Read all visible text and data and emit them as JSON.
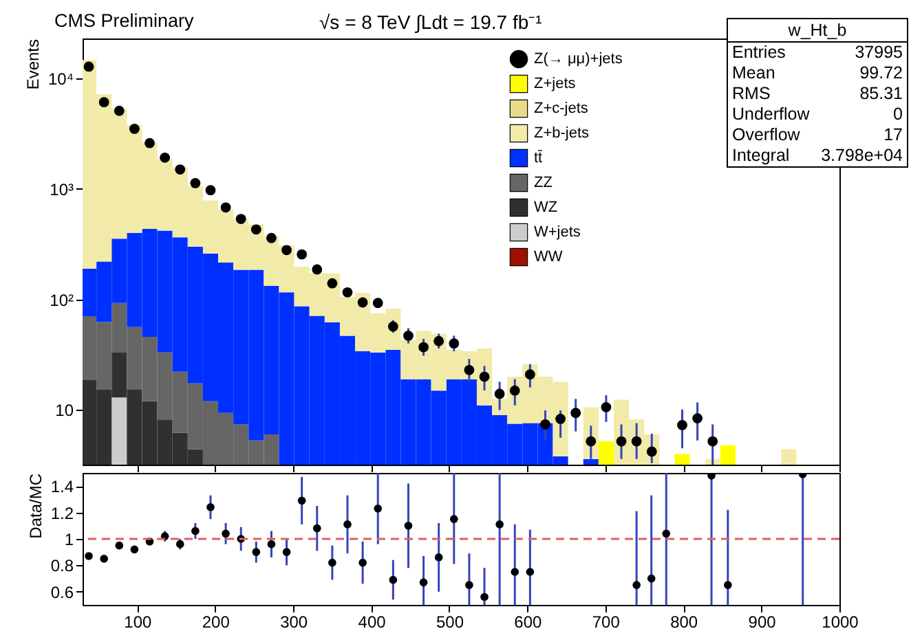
{
  "chart_data": [
    {
      "type": "bar",
      "title": "CMS Preliminary",
      "ylabel": "Events",
      "stacked": true,
      "log": "y",
      "legend": "top right",
      "marker": "circle",
      "tick_labels": "y",
      "annotations": [
        "√s = 8 TeV ∫Ldt = 19.7 fb⁻¹",
        "w_Ht_b",
        "Entries",
        "37995",
        "Mean",
        "99.72",
        "RMS",
        "85.31",
        "Underflow",
        "0",
        "Overflow",
        "17",
        "Integral",
        "3.798e+04"
      ],
      "xlim": [
        30,
        1000
      ],
      "xticks": [
        100,
        200,
        300,
        400,
        500,
        600,
        700,
        800,
        900,
        1000
      ],
      "ylim": [
        3.2,
        23000
      ],
      "yticks": [
        10,
        {
          "value": 100,
          "label": "10²"
        },
        {
          "value": 1000,
          "label": "10³"
        },
        {
          "value": 10000,
          "label": "10⁴"
        }
      ],
      "x": [
        38,
        57.5,
        77,
        96.5,
        116,
        135.5,
        155,
        174.5,
        194,
        213.5,
        233,
        252.5,
        272,
        291.5,
        311,
        330.5,
        350,
        369.5,
        389,
        408.5,
        428,
        447.5,
        467,
        486.5,
        506,
        525.5,
        545,
        564.5,
        584,
        603.5,
        623,
        642.5,
        662,
        681.5,
        701,
        720.5,
        740,
        759.5,
        779,
        798.5,
        818,
        837.5,
        857,
        876.5,
        896,
        915.5,
        935
      ],
      "series": [
        {
          "name": "WW",
          "color": "#a01000",
          "values": [
            null,
            null,
            null,
            null,
            null,
            null,
            null,
            null,
            null,
            null,
            null,
            null,
            null,
            null,
            null,
            null,
            null,
            null,
            null,
            null,
            null,
            null,
            null,
            null,
            null,
            null,
            null,
            null,
            null,
            null,
            null,
            null,
            null,
            null,
            null,
            null,
            null,
            null,
            null,
            null,
            null,
            null,
            null,
            null,
            null,
            null,
            null
          ]
        },
        {
          "name": "W+jets",
          "color": "#cccccc",
          "values": [
            null,
            null,
            13,
            null,
            null,
            null,
            null,
            null,
            null,
            null,
            null,
            null,
            null,
            null,
            null,
            null,
            null,
            null,
            null,
            null,
            null,
            null,
            null,
            null,
            null,
            null,
            null,
            null,
            null,
            null,
            null,
            null,
            null,
            null,
            null,
            null,
            null,
            null,
            null,
            null,
            null,
            null,
            null,
            null,
            null,
            null,
            null
          ]
        },
        {
          "name": "WZ",
          "color": "#303030",
          "values": [
            18.6,
            15.4,
            20,
            15.4,
            12,
            8.2,
            6.2,
            4.4,
            null,
            null,
            null,
            null,
            null,
            null,
            null,
            null,
            null,
            null,
            null,
            null,
            null,
            null,
            null,
            null,
            null,
            null,
            null,
            null,
            null,
            null,
            null,
            null,
            null,
            null,
            null,
            null,
            null,
            null,
            null,
            null,
            null,
            null,
            null,
            null,
            null,
            null,
            null
          ]
        },
        {
          "name": "ZZ",
          "color": "#666666",
          "values": [
            52,
            47,
            60,
            41,
            34,
            25,
            16,
            13,
            12,
            9.4,
            7.4,
            5.3,
            6,
            null,
            null,
            null,
            null,
            null,
            null,
            null,
            null,
            null,
            null,
            null,
            null,
            null,
            null,
            null,
            null,
            null,
            null,
            null,
            null,
            null,
            null,
            null,
            null,
            null,
            null,
            null,
            null,
            null,
            null,
            null,
            null,
            null,
            null
          ]
        },
        {
          "name": "tt̄",
          "color": "#0030ff",
          "values": [
            119,
            158,
            262,
            344,
            389,
            387,
            343,
            283,
            248,
            206,
            178,
            180,
            127,
            116,
            87,
            71,
            62,
            47,
            34,
            33,
            35,
            19,
            19,
            15,
            19,
            19,
            11,
            9,
            7.5,
            7.6,
            7.6,
            3.8,
            null,
            3.6,
            null,
            null,
            null,
            null,
            null,
            null,
            null,
            null,
            null,
            null,
            null,
            null,
            null
          ]
        },
        {
          "name": "Z+b-jets",
          "color": "#f2eaa8",
          "values": [
            14500,
            6960,
            4990,
            3400,
            2215,
            1460,
            1195,
            770,
            526,
            435,
            350,
            290,
            242,
            193,
            111,
            102,
            110,
            58,
            81,
            42,
            48,
            24,
            33,
            34,
            16,
            15,
            25,
            3.6,
            12.5,
            18.4,
            12.4,
            14.2,
            null,
            7,
            null,
            12.4,
            8.2,
            6,
            null,
            null,
            null,
            3.6,
            null,
            null,
            null,
            null,
            4.4
          ]
        },
        {
          "name": "Z+c-jets",
          "color": "#e8dc8a",
          "values": [
            null,
            null,
            null,
            null,
            null,
            null,
            null,
            null,
            null,
            null,
            null,
            null,
            null,
            null,
            null,
            null,
            null,
            null,
            null,
            null,
            null,
            null,
            null,
            null,
            null,
            null,
            null,
            null,
            null,
            null,
            null,
            null,
            null,
            null,
            null,
            null,
            null,
            null,
            null,
            null,
            null,
            null,
            null,
            null,
            null,
            null,
            null
          ]
        },
        {
          "name": "Z+jets",
          "color": "#ffff00",
          "values": [
            null,
            null,
            null,
            null,
            null,
            null,
            null,
            null,
            null,
            null,
            null,
            null,
            null,
            null,
            null,
            null,
            null,
            null,
            null,
            null,
            null,
            null,
            null,
            null,
            null,
            null,
            null,
            null,
            null,
            null,
            null,
            null,
            null,
            null,
            5.2,
            null,
            null,
            null,
            null,
            4,
            null,
            null,
            4.8,
            null,
            null,
            null,
            null
          ]
        },
        {
          "name": "Z(→ μμ)+jets",
          "type": "scatter",
          "color": "#000000",
          "values": [
            12800,
            6100,
            5100,
            3500,
            2600,
            1920,
            1500,
            1130,
            975,
            680,
            535,
            430,
            360,
            280,
            256,
            187,
            140,
            116,
            94,
            93,
            57,
            47,
            37,
            42,
            40,
            23,
            20,
            14,
            15,
            21,
            7.4,
            8.3,
            9.4,
            5.2,
            10.6,
            5.2,
            5.2,
            4.2,
            null,
            7.3,
            8.4,
            5.2,
            null,
            null,
            null,
            null,
            null
          ],
          "errors": [
            null,
            null,
            null,
            null,
            null,
            null,
            null,
            null,
            null,
            null,
            null,
            null,
            null,
            null,
            null,
            null,
            null,
            null,
            null,
            null,
            [
              50,
              65
            ],
            [
              40,
              55
            ],
            [
              31,
              44
            ],
            [
              36,
              49
            ],
            [
              34,
              47
            ],
            [
              18,
              29
            ],
            [
              15,
              25
            ],
            [
              10,
              18
            ],
            [
              11,
              19
            ],
            [
              16,
              26
            ],
            [
              5.3,
              9.9
            ],
            [
              5.6,
              9.9
            ],
            [
              6.4,
              12.6
            ],
            [
              3.6,
              7.2
            ],
            [
              7.8,
              13.6
            ],
            [
              3.6,
              7.4
            ],
            [
              3.6,
              7.6
            ],
            [
              3.3,
              6.1
            ],
            null,
            [
              4.5,
              10.1
            ],
            [
              5.3,
              11.7
            ],
            [
              3.2,
              7.4
            ],
            null,
            null,
            null,
            null,
            null
          ]
        }
      ]
    },
    {
      "type": "scatter",
      "ylabel": "Data/MC",
      "marker": "circle",
      "xlim": [
        30,
        1000
      ],
      "xticks": [
        100,
        200,
        300,
        400,
        500,
        600,
        700,
        800,
        900,
        1000
      ],
      "ylim": [
        0.5,
        1.5
      ],
      "yticks": [
        0.6,
        0.8,
        1,
        1.2,
        1.4
      ],
      "ref_lines": [
        {
          "axis": "y",
          "value": 1,
          "color": "#e06060",
          "line_style": "dashed"
        }
      ],
      "series": [
        {
          "color": "#000000",
          "x": [
            38,
            57.5,
            77,
            96.5,
            116,
            135.5,
            155,
            174.5,
            194,
            213.5,
            233,
            252.5,
            272,
            291.5,
            311,
            330.5,
            350,
            369.5,
            389,
            408.5,
            428,
            447.5,
            467,
            486.5,
            506,
            525.5,
            545,
            564.5,
            584,
            603.5,
            740,
            759,
            778,
            836,
            857,
            953
          ],
          "values": [
            0.87,
            0.85,
            0.95,
            0.92,
            0.98,
            1.02,
            0.96,
            1.06,
            1.24,
            1.04,
            1.0,
            0.9,
            0.96,
            0.9,
            1.29,
            1.08,
            0.82,
            1.11,
            0.82,
            1.23,
            0.69,
            1.1,
            0.67,
            0.86,
            1.15,
            0.65,
            0.56,
            1.11,
            0.75,
            0.75,
            0.65,
            0.7,
            1.04,
            1.48,
            0.65,
            1.49
          ],
          "errors": [
            null,
            null,
            null,
            null,
            null,
            0.04,
            0.04,
            0.06,
            0.09,
            0.08,
            0.09,
            0.08,
            0.1,
            0.1,
            0.18,
            0.17,
            0.13,
            0.22,
            0.16,
            0.27,
            0.15,
            0.32,
            [
              0.5,
              0.87
            ],
            0.26,
            [
              0.81,
              1.5
            ],
            [
              0.5,
              0.89
            ],
            [
              0.5,
              0.78
            ],
            [
              0.5,
              1.5
            ],
            [
              0.5,
              1.11
            ],
            [
              0.5,
              1.07
            ],
            [
              0.5,
              1.21
            ],
            [
              0.5,
              1.33
            ],
            [
              0.5,
              1.5
            ],
            [
              0.5,
              1.5
            ],
            [
              0.5,
              1.22
            ],
            [
              0.5,
              1.5
            ]
          ]
        }
      ]
    }
  ]
}
